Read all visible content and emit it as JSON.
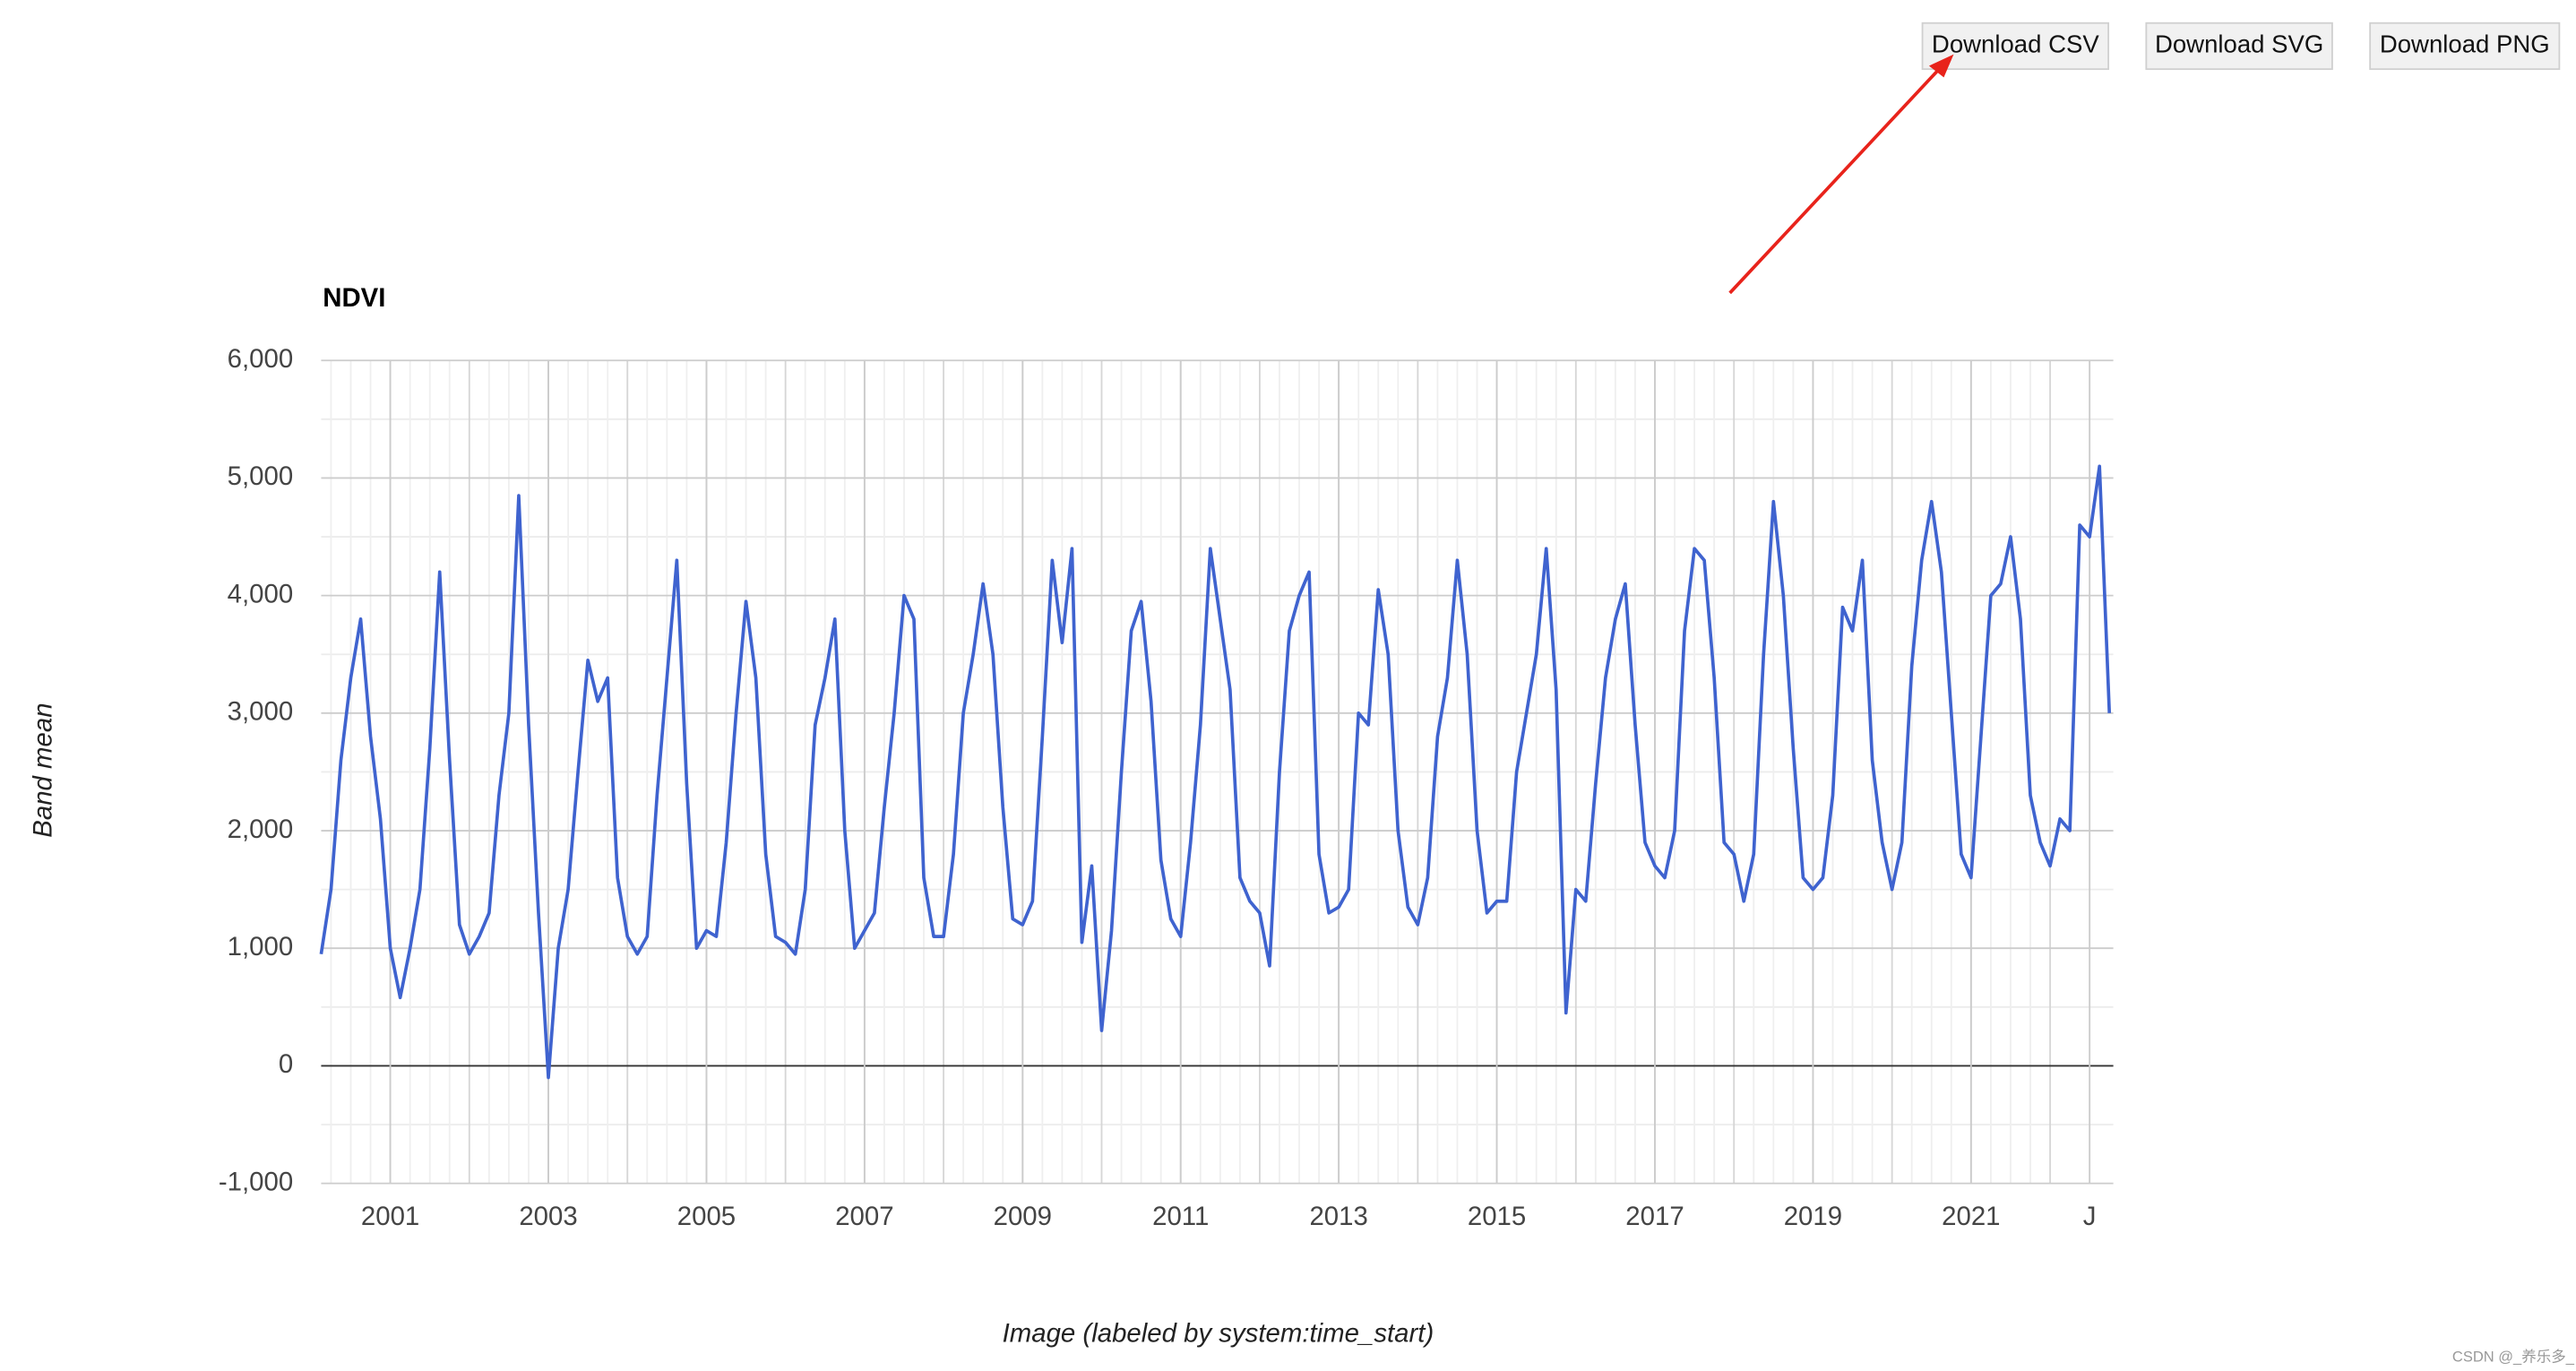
{
  "buttons": [
    "Download CSV",
    "Download SVG",
    "Download PNG"
  ],
  "watermark": "CSDN @_养乐多_",
  "chart_data": {
    "type": "line",
    "title": "NDVI",
    "y_label": "Band mean",
    "x_label": "Image (labeled by system:time_start)",
    "color": "#3f63cf",
    "grid": true,
    "xlim": [
      2000.125,
      2022.8
    ],
    "ylim": [
      -1000,
      6000
    ],
    "xticks": [
      2001,
      2003,
      2005,
      2007,
      2009,
      2011,
      2013,
      2015,
      2017,
      2019,
      2021,
      {
        "value": 2022.5,
        "label": "J"
      }
    ],
    "yticks": [
      {
        "value": -1000,
        "label": "-1,000"
      },
      0,
      {
        "value": 1000,
        "label": "1,000"
      },
      {
        "value": 2000,
        "label": "2,000"
      },
      {
        "value": 3000,
        "label": "3,000"
      },
      {
        "value": 4000,
        "label": "4,000"
      },
      {
        "value": 5000,
        "label": "5,000"
      },
      {
        "value": 6000,
        "label": "6,000"
      }
    ],
    "x": [
      2000.125,
      2000.25,
      2000.375,
      2000.5,
      2000.625,
      2000.75,
      2000.875,
      2001,
      2001.125,
      2001.25,
      2001.375,
      2001.5,
      2001.625,
      2001.75,
      2001.875,
      2002,
      2002.125,
      2002.25,
      2002.375,
      2002.5,
      2002.625,
      2002.75,
      2002.875,
      2003,
      2003.125,
      2003.25,
      2003.375,
      2003.5,
      2003.625,
      2003.75,
      2003.875,
      2004,
      2004.125,
      2004.25,
      2004.375,
      2004.5,
      2004.625,
      2004.75,
      2004.875,
      2005,
      2005.125,
      2005.25,
      2005.375,
      2005.5,
      2005.625,
      2005.75,
      2005.875,
      2006,
      2006.125,
      2006.25,
      2006.375,
      2006.5,
      2006.625,
      2006.75,
      2006.875,
      2007,
      2007.125,
      2007.25,
      2007.375,
      2007.5,
      2007.625,
      2007.75,
      2007.875,
      2008,
      2008.125,
      2008.25,
      2008.375,
      2008.5,
      2008.625,
      2008.75,
      2008.875,
      2009,
      2009.125,
      2009.25,
      2009.375,
      2009.5,
      2009.625,
      2009.75,
      2009.875,
      2010,
      2010.125,
      2010.25,
      2010.375,
      2010.5,
      2010.625,
      2010.75,
      2010.875,
      2011,
      2011.125,
      2011.25,
      2011.375,
      2011.5,
      2011.625,
      2011.75,
      2011.875,
      2012,
      2012.125,
      2012.25,
      2012.375,
      2012.5,
      2012.625,
      2012.75,
      2012.875,
      2013,
      2013.125,
      2013.25,
      2013.375,
      2013.5,
      2013.625,
      2013.75,
      2013.875,
      2014,
      2014.125,
      2014.25,
      2014.375,
      2014.5,
      2014.625,
      2014.75,
      2014.875,
      2015,
      2015.125,
      2015.25,
      2015.375,
      2015.5,
      2015.625,
      2015.75,
      2015.875,
      2016,
      2016.125,
      2016.25,
      2016.375,
      2016.5,
      2016.625,
      2016.75,
      2016.875,
      2017,
      2017.125,
      2017.25,
      2017.375,
      2017.5,
      2017.625,
      2017.75,
      2017.875,
      2018,
      2018.125,
      2018.25,
      2018.375,
      2018.5,
      2018.625,
      2018.75,
      2018.875,
      2019,
      2019.125,
      2019.25,
      2019.375,
      2019.5,
      2019.625,
      2019.75,
      2019.875,
      2020,
      2020.125,
      2020.25,
      2020.375,
      2020.5,
      2020.625,
      2020.75,
      2020.875,
      2021,
      2021.125,
      2021.25,
      2021.375,
      2021.5,
      2021.625,
      2021.75,
      2021.875,
      2022,
      2022.125,
      2022.25,
      2022.375,
      2022.5,
      2022.625,
      2022.75
    ],
    "values": [
      950,
      1500,
      2600,
      3300,
      3800,
      2800,
      2100,
      1000,
      580,
      1000,
      1500,
      2700,
      4200,
      2600,
      1200,
      950,
      1100,
      1300,
      2300,
      3000,
      4850,
      2900,
      1300,
      -100,
      1000,
      1500,
      2500,
      3450,
      3100,
      3300,
      1600,
      1100,
      950,
      1100,
      2300,
      3300,
      4300,
      2400,
      1000,
      1150,
      1100,
      1900,
      3000,
      3950,
      3300,
      1800,
      1100,
      1050,
      950,
      1500,
      2900,
      3300,
      3800,
      2000,
      1000,
      1150,
      1300,
      2200,
      3000,
      4000,
      3800,
      1600,
      1100,
      1100,
      1800,
      3000,
      3500,
      4100,
      3500,
      2200,
      1250,
      1200,
      1400,
      2800,
      4300,
      3600,
      4400,
      1050,
      1700,
      300,
      1150,
      2500,
      3700,
      3950,
      3100,
      1750,
      1250,
      1100,
      1900,
      2900,
      4400,
      3800,
      3200,
      1600,
      1400,
      1300,
      850,
      2500,
      3700,
      4000,
      4200,
      1800,
      1300,
      1350,
      1500,
      3000,
      2900,
      4050,
      3500,
      2000,
      1350,
      1200,
      1600,
      2800,
      3300,
      4300,
      3500,
      2000,
      1300,
      1400,
      1400,
      2500,
      3000,
      3500,
      4400,
      3200,
      450,
      1500,
      1400,
      2400,
      3300,
      3800,
      4100,
      2900,
      1900,
      1700,
      1600,
      2000,
      3700,
      4400,
      4300,
      3300,
      1900,
      1800,
      1400,
      1800,
      3500,
      4800,
      4000,
      2700,
      1600,
      1500,
      1600,
      2300,
      3900,
      3700,
      4300,
      2600,
      1900,
      1500,
      1900,
      3400,
      4300,
      4800,
      4200,
      3000,
      1800,
      1600,
      2800,
      4000,
      4100,
      4500,
      3800,
      2300,
      1900,
      1700,
      2100,
      2000,
      4600,
      4500,
      5100,
      3000
    ]
  }
}
